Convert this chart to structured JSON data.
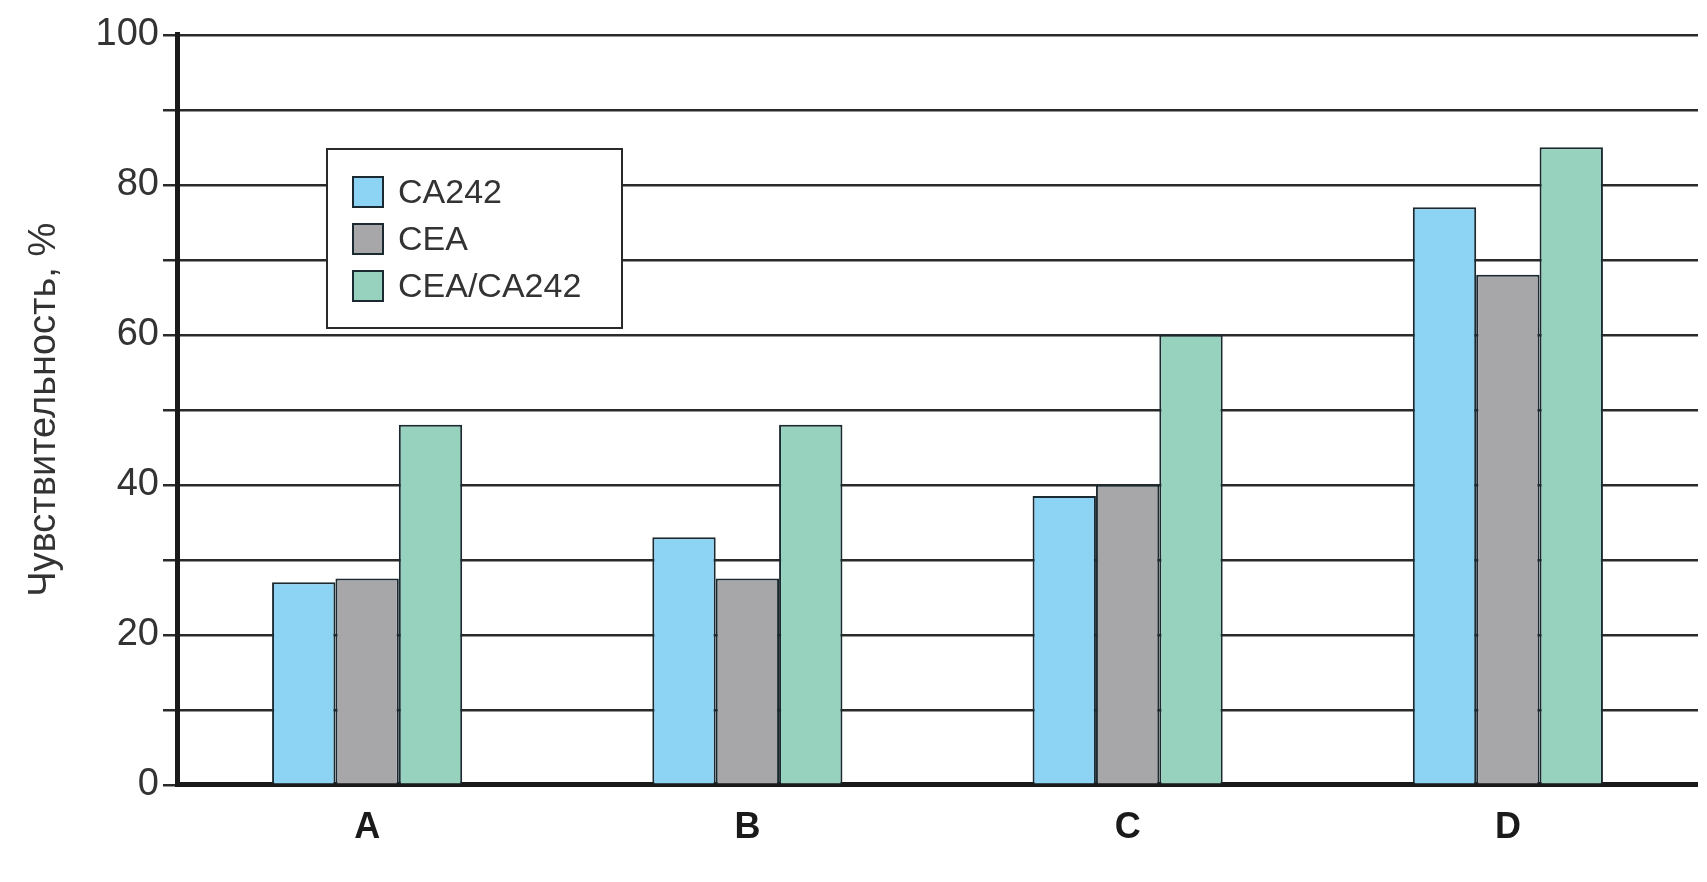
{
  "chart_data": {
    "type": "bar",
    "ylabel": "Чувствительность, %",
    "categories": [
      "A",
      "B",
      "C",
      "D"
    ],
    "series": [
      {
        "name": "CA242",
        "color": "#8dd3f3",
        "values": [
          27,
          33,
          38.5,
          77
        ]
      },
      {
        "name": "CEA",
        "color": "#a7a7aa",
        "values": [
          27.5,
          27.5,
          40,
          68
        ]
      },
      {
        "name": "CEA/CA242",
        "color": "#97d2bf",
        "values": [
          48,
          48,
          60,
          85
        ]
      }
    ],
    "ylim": [
      0,
      100
    ],
    "yticks": [
      0,
      {
        "value": 10,
        "label": null
      },
      20,
      {
        "value": 30,
        "label": null
      },
      40,
      {
        "value": 50,
        "label": null
      },
      60,
      {
        "value": 70,
        "label": null
      },
      80,
      {
        "value": 90,
        "label": null
      },
      100
    ],
    "grid": "y",
    "legend": "top left"
  }
}
